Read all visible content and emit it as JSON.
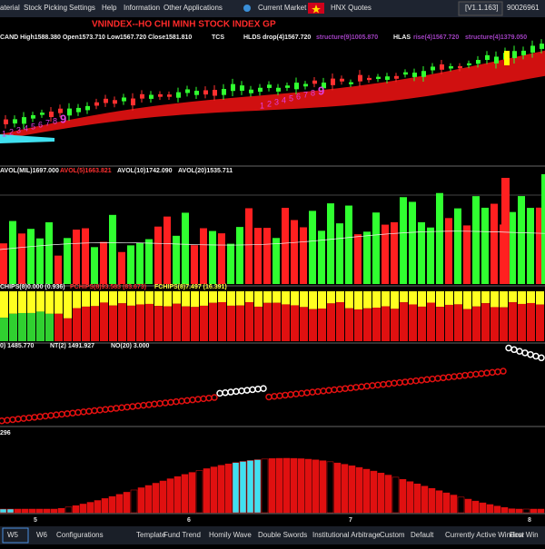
{
  "menu": [
    "aterial",
    "Stock Picking",
    "Settings",
    "Help",
    "Information",
    "Other Applications",
    "Current Market",
    "HNX Quotes"
  ],
  "version": "[V1.1.163]",
  "account": "90026961",
  "title": "VNINDEX--HO CHI MINH STOCK INDEX  GP",
  "candle_panel": {
    "info": "CAND High1588.380 Open1573.710 Low1567.720 Close1581.810",
    "tcs": "TCS",
    "hlds": "HLDS drop(4)1567.720",
    "hlds_structure": "structure(9)1005.870",
    "hlas": "HLAS",
    "hlas_rise": "rise(4)1567.720",
    "hlas_structure": "structure(4)1379.050",
    "sequence_1": [
      "1",
      "2",
      "3",
      "4",
      "5",
      "6",
      "7",
      "8",
      "9"
    ],
    "sequence_2": [
      "1",
      "2",
      "3",
      "4",
      "5",
      "6",
      "7",
      "8",
      "9"
    ]
  },
  "volume_panel": {
    "avol": "AVOL(MIL)1697.000",
    "avol5": "AVOL(5)1663.821",
    "avol10": "AVOL(10)1742.090",
    "avol20": "AVOL(20)1535.711"
  },
  "chips_panel": {
    "chips": "CHIPS(8)0.000 (0.936)",
    "pchips": "PCHIPS(8)93.583 (83.673)",
    "fchips": "FCHIPS(8)7.497 (16.391)"
  },
  "trend_panel": {
    "value": "0) 1485.770",
    "nt": "NT(2) 1491.927",
    "no": "NO(20) 3.000"
  },
  "wave_panel": {
    "value": "296"
  },
  "x_axis": [
    "5",
    "6",
    "7",
    "8"
  ],
  "tabs": [
    "W5",
    "W6",
    "Configurations",
    "Template",
    "Fund Trend",
    "Homily Wave",
    "Double Swords",
    "Institutional Arbitrage",
    "Custom",
    "Default",
    "Currently Active Window",
    "First Win"
  ]
}
